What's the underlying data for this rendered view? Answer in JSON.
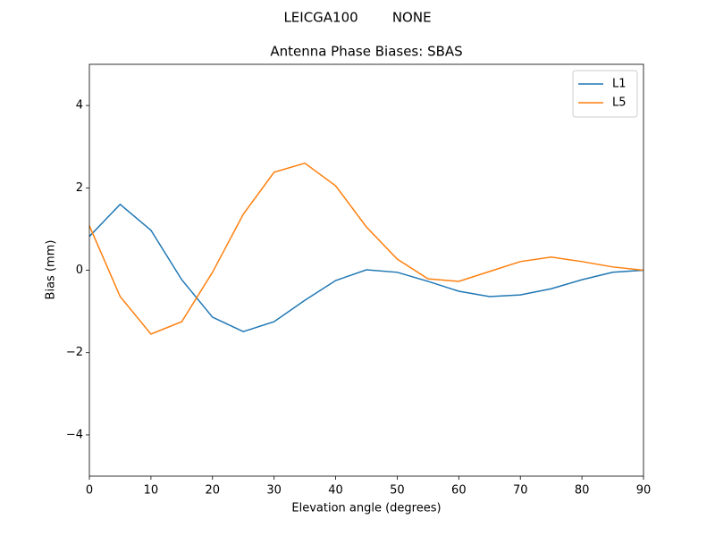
{
  "chart_data": {
    "type": "line",
    "suptitle": "LEICGA100        NONE",
    "title": "Antenna Phase Biases: SBAS",
    "xlabel": "Elevation angle (degrees)",
    "ylabel": "Bias (mm)",
    "x": [
      0,
      5,
      10,
      15,
      20,
      25,
      30,
      35,
      40,
      45,
      50,
      55,
      60,
      65,
      70,
      75,
      80,
      85,
      90
    ],
    "series": [
      {
        "name": "L1",
        "color": "#1f77b4",
        "values": [
          0.82,
          1.6,
          0.97,
          -0.23,
          -1.14,
          -1.49,
          -1.25,
          -0.73,
          -0.25,
          0.01,
          -0.05,
          -0.27,
          -0.51,
          -0.64,
          -0.6,
          -0.45,
          -0.23,
          -0.05,
          0
        ]
      },
      {
        "name": "L5",
        "color": "#ff7f0e",
        "values": [
          1.08,
          -0.64,
          -1.55,
          -1.25,
          -0.05,
          1.36,
          2.38,
          2.6,
          2.05,
          1.05,
          0.27,
          -0.21,
          -0.27,
          -0.03,
          0.21,
          0.32,
          0.21,
          0.08,
          0
        ]
      }
    ],
    "xlim": [
      0,
      90
    ],
    "xticks": [
      0,
      10,
      20,
      30,
      40,
      50,
      60,
      70,
      80,
      90
    ],
    "ylim": [
      -5,
      5
    ],
    "yticks": [
      {
        "value": -4,
        "label": "−4"
      },
      {
        "value": -2,
        "label": "−2"
      },
      0,
      2,
      4
    ],
    "legend": "upper right",
    "grid": false
  }
}
